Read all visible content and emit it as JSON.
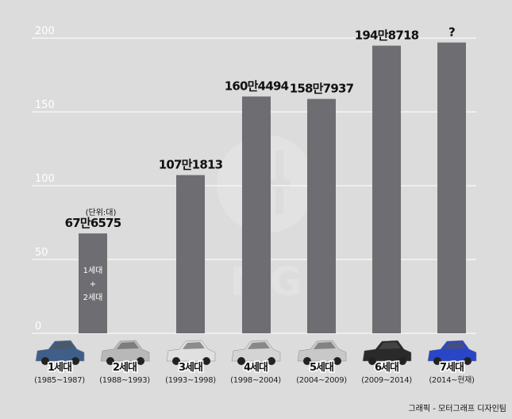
{
  "chart_data": {
    "type": "bar",
    "title": "",
    "unit_note": "(단위:대)",
    "ylim": [
      0,
      200
    ],
    "yticks": [
      "0",
      "50",
      "100",
      "150",
      "200"
    ],
    "grid": true,
    "categories": [
      "1세대 + 2세대",
      "3세대",
      "4세대",
      "5세대",
      "6세대",
      "7세대"
    ],
    "values": [
      676575,
      1071813,
      1604494,
      1587937,
      1948718,
      1970000
    ],
    "value_labels": [
      "67만6575",
      "107만1813",
      "160만4494",
      "158만7937",
      "194만8718",
      "?"
    ],
    "in_bar_label": [
      "1세대",
      "+",
      "2세대"
    ],
    "generations": [
      {
        "label": "1세대",
        "years": "(1985~1987)",
        "color": "#3f5f8a"
      },
      {
        "label": "2세대",
        "years": "(1988~1993)",
        "color": "#b8b8b8"
      },
      {
        "label": "3세대",
        "years": "(1993~1998)",
        "color": "#e0e0e0"
      },
      {
        "label": "4세대",
        "years": "(1998~2004)",
        "color": "#d4d4d4"
      },
      {
        "label": "5세대",
        "years": "(2004~2009)",
        "color": "#c8c8c8"
      },
      {
        "label": "6세대",
        "years": "(2009~2014)",
        "color": "#2a2a2a"
      },
      {
        "label": "7세대",
        "years": "(2014~현재)",
        "color": "#2a46c8"
      }
    ],
    "bar_color": "#6e6d72"
  },
  "watermark": "MG",
  "credit": "그래픽 - 모터그래프 디자인팀"
}
